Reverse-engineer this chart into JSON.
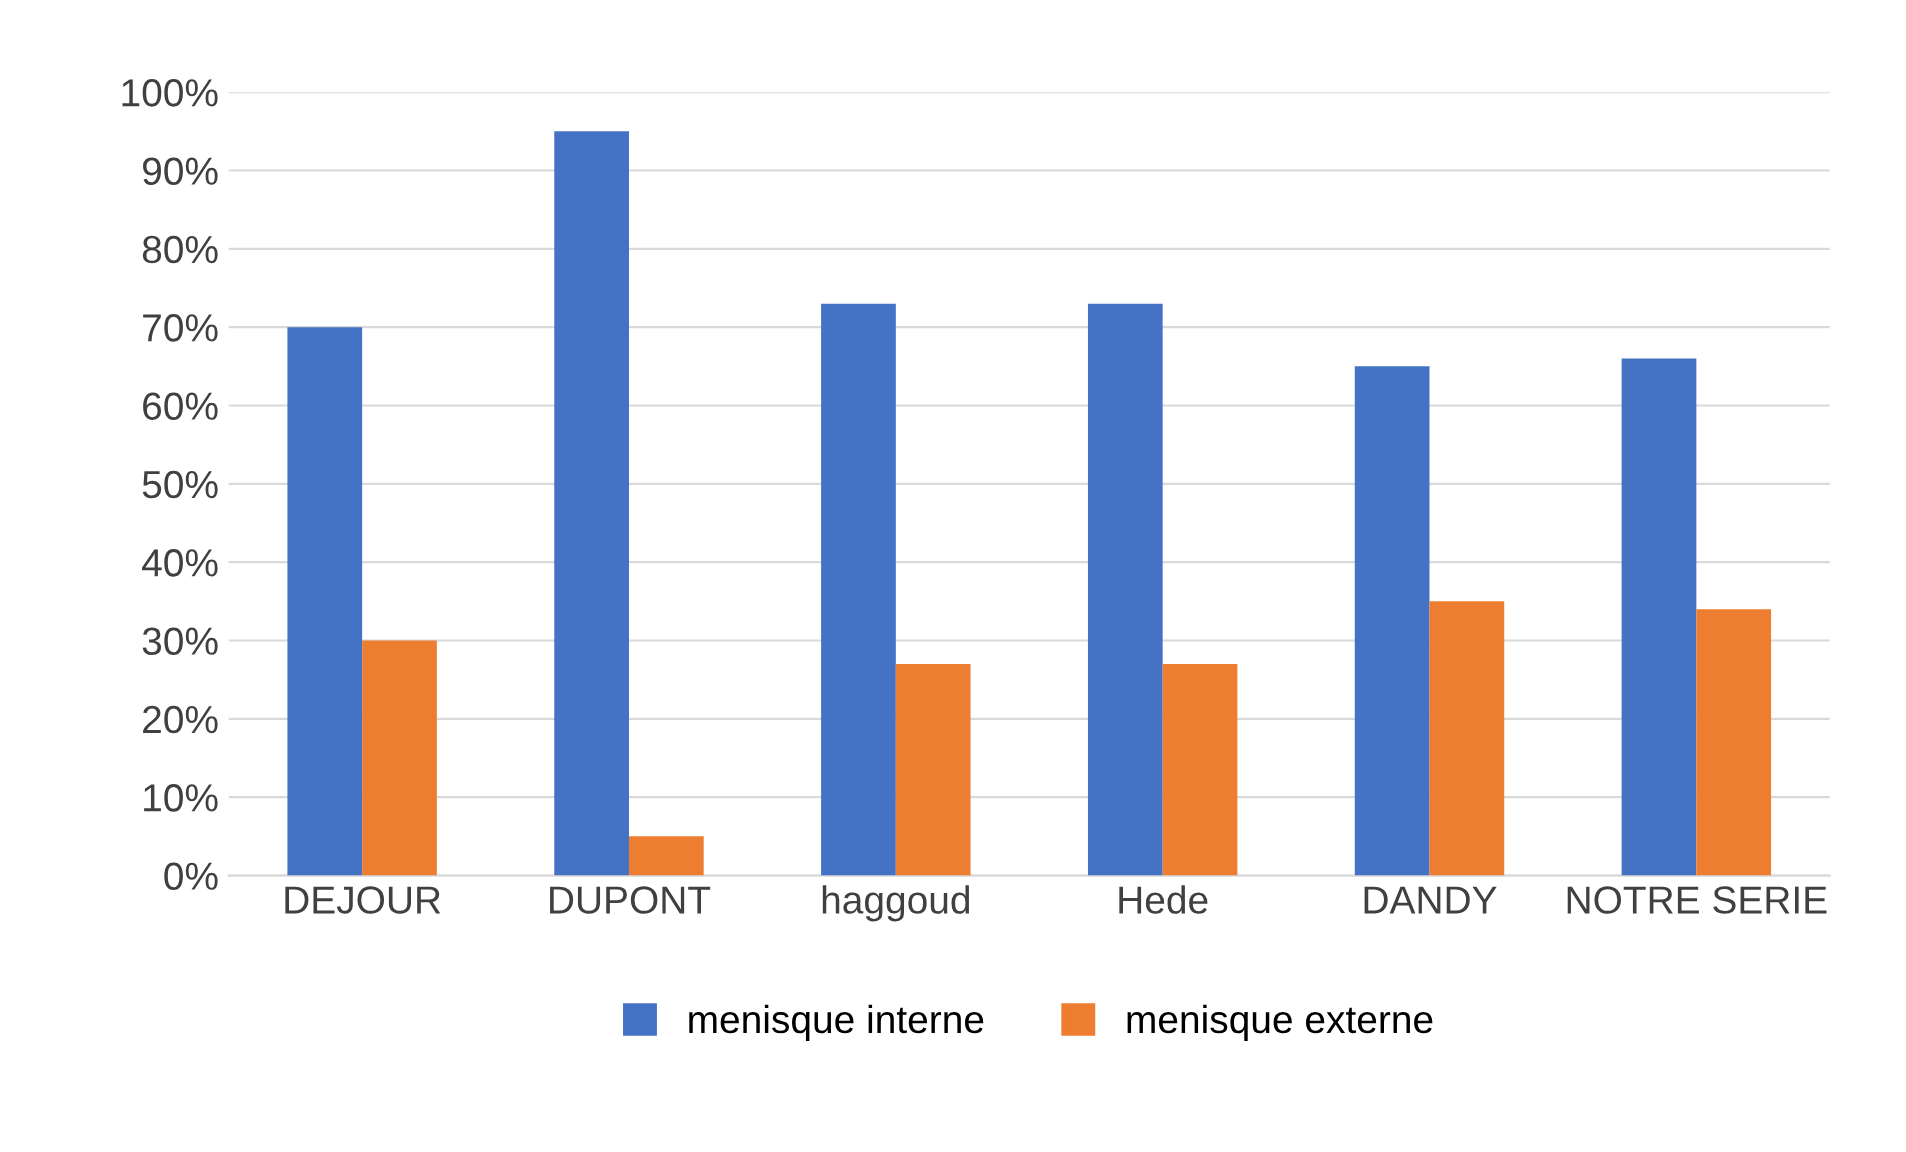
{
  "chart_data": {
    "type": "bar",
    "categories": [
      "DEJOUR",
      "DUPONT",
      "haggoud",
      "Hede",
      "DANDY",
      "NOTRE SERIE"
    ],
    "series": [
      {
        "name": "menisque interne",
        "color": "#4472c4",
        "values": [
          70,
          95,
          73,
          73,
          65,
          66
        ]
      },
      {
        "name": "menisque externe",
        "color": "#ed7d31",
        "values": [
          30,
          5,
          27,
          27,
          35,
          34
        ]
      }
    ],
    "ylim": [
      0,
      100
    ],
    "yticks": [
      {
        "value": 0,
        "label": "0%"
      },
      {
        "value": 10,
        "label": "10%"
      },
      {
        "value": 20,
        "label": "20%"
      },
      {
        "value": 30,
        "label": "30%"
      },
      {
        "value": 40,
        "label": "40%"
      },
      {
        "value": 50,
        "label": "50%"
      },
      {
        "value": 60,
        "label": "60%"
      },
      {
        "value": 70,
        "label": "70%"
      },
      {
        "value": 80,
        "label": "80%"
      },
      {
        "value": 90,
        "label": "90%"
      },
      {
        "value": 100,
        "label": "100%"
      }
    ],
    "grid": "y",
    "legend": "bottom"
  }
}
